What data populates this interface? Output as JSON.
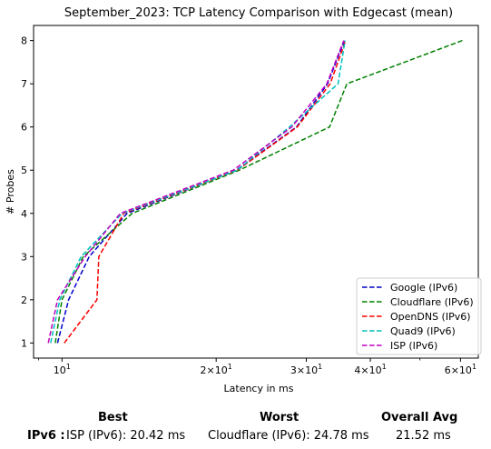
{
  "chart_data": {
    "type": "line",
    "title": "September_2023: TCP Latency Comparison with Edgecast (mean)",
    "xlabel": "Latency in ms",
    "ylabel": "# Probes",
    "xscale": "log",
    "xlim": [
      8.8,
      65
    ],
    "ylim": [
      0.65,
      8.35
    ],
    "yticks": [
      1,
      2,
      3,
      4,
      5,
      6,
      7,
      8
    ],
    "xticks": [
      {
        "value": 10,
        "label": "10^1"
      },
      {
        "value": 20,
        "label": "2×10^1"
      },
      {
        "value": 30,
        "label": "3×10^1"
      },
      {
        "value": 40,
        "label": "4×10^1"
      },
      {
        "value": 60,
        "label": "6×10^1"
      }
    ],
    "legend_position": "lower-right",
    "series": [
      {
        "name": "Google (IPv6)",
        "color": "#0000cc",
        "points": [
          [
            9.8,
            1
          ],
          [
            10.3,
            2
          ],
          [
            11.3,
            3
          ],
          [
            13.4,
            4
          ],
          [
            21.9,
            5
          ],
          [
            28.7,
            6
          ],
          [
            33.0,
            7
          ],
          [
            35.6,
            8
          ]
        ]
      },
      {
        "name": "Cloudflare (IPv6)",
        "color": "#008000",
        "points": [
          [
            9.7,
            1
          ],
          [
            10.0,
            2
          ],
          [
            11.0,
            3
          ],
          [
            13.7,
            4
          ],
          [
            22.2,
            5
          ],
          [
            33.3,
            6
          ],
          [
            36.0,
            7
          ],
          [
            60.5,
            8
          ]
        ]
      },
      {
        "name": "OpenDNS (IPv6)",
        "color": "#ff0000",
        "points": [
          [
            10.1,
            1
          ],
          [
            11.7,
            2
          ],
          [
            11.8,
            3
          ],
          [
            13.2,
            4
          ],
          [
            22.0,
            5
          ],
          [
            28.8,
            6
          ],
          [
            33.4,
            7
          ],
          [
            35.8,
            8
          ]
        ]
      },
      {
        "name": "Quad9 (IPv6)",
        "color": "#00bfbf",
        "points": [
          [
            9.5,
            1
          ],
          [
            9.9,
            2
          ],
          [
            10.9,
            3
          ],
          [
            13.1,
            4
          ],
          [
            22.0,
            5
          ],
          [
            27.8,
            6
          ],
          [
            34.6,
            7
          ],
          [
            35.7,
            8
          ]
        ]
      },
      {
        "name": "ISP (IPv6)",
        "color": "#bf00bf",
        "points": [
          [
            9.4,
            1
          ],
          [
            9.8,
            2
          ],
          [
            11.1,
            3
          ],
          [
            13.0,
            4
          ],
          [
            21.6,
            5
          ],
          [
            28.1,
            6
          ],
          [
            32.9,
            7
          ],
          [
            35.5,
            8
          ]
        ]
      }
    ]
  },
  "summary": {
    "headers": {
      "best": "Best",
      "worst": "Worst",
      "avg": "Overall Avg"
    },
    "row_label": "IPv6 :",
    "best": "ISP (IPv6): 20.42 ms",
    "worst": "Cloudflare (IPv6): 24.78 ms",
    "avg": "21.52 ms"
  }
}
